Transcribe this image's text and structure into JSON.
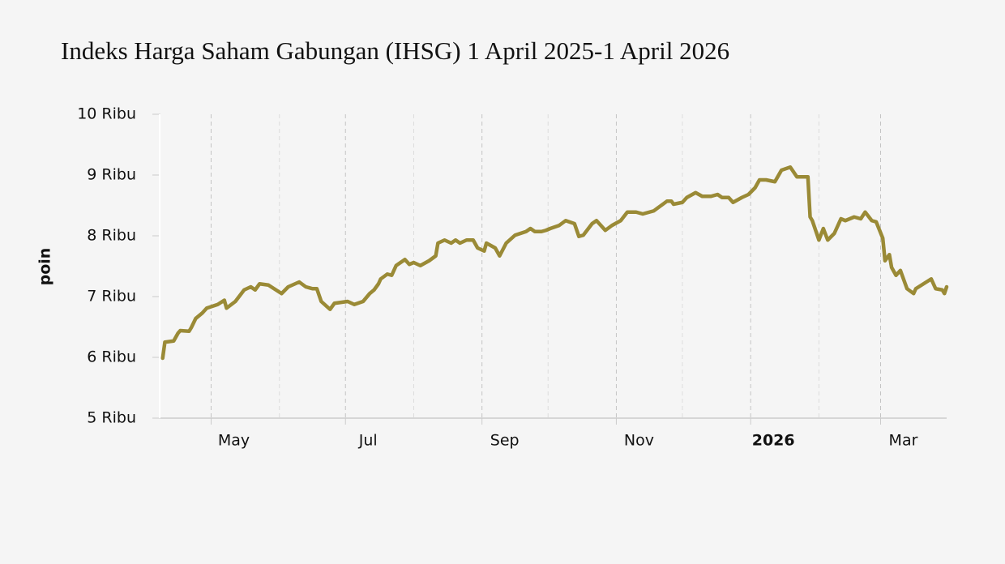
{
  "chart_data": {
    "type": "line",
    "title": "Indeks Harga Saham Gabungan (IHSG) 1 April 2025-1 April 2026",
    "y_label": "poin",
    "xlim": [
      "2025-04-08",
      "2026-03-31"
    ],
    "xticks": [
      {
        "value": "2025-05-01",
        "label": "May"
      },
      {
        "value": "2025-07-01",
        "label": "Jul"
      },
      {
        "value": "2025-09-01",
        "label": "Sep"
      },
      {
        "value": "2025-11-01",
        "label": "Nov"
      },
      {
        "value": "2026-01-01",
        "label": "2026"
      },
      {
        "value": "2026-03-01",
        "label": "Mar"
      }
    ],
    "x_minor_grid": [
      "2025-06-01",
      "2025-08-01",
      "2025-10-01",
      "2025-12-01",
      "2026-02-01"
    ],
    "ylim": [
      5000,
      10000
    ],
    "yticks": [
      {
        "value": 5000,
        "label": "5 Ribu"
      },
      {
        "value": 6000,
        "label": "6 Ribu"
      },
      {
        "value": 7000,
        "label": "7 Ribu"
      },
      {
        "value": 8000,
        "label": "8 Ribu"
      },
      {
        "value": 9000,
        "label": "9 Ribu"
      },
      {
        "value": 10000,
        "label": "10 Ribu"
      }
    ],
    "grid": true,
    "x": [
      "2025-04-09",
      "2025-04-10",
      "2025-04-14",
      "2025-04-16",
      "2025-04-17",
      "2025-04-21",
      "2025-04-22",
      "2025-04-24",
      "2025-04-27",
      "2025-04-29",
      "2025-05-04",
      "2025-05-07",
      "2025-05-08",
      "2025-05-12",
      "2025-05-16",
      "2025-05-19",
      "2025-05-21",
      "2025-05-23",
      "2025-05-27",
      "2025-06-02",
      "2025-06-05",
      "2025-06-10",
      "2025-06-13",
      "2025-06-16",
      "2025-06-18",
      "2025-06-20",
      "2025-06-24",
      "2025-06-26",
      "2025-07-02",
      "2025-07-05",
      "2025-07-09",
      "2025-07-12",
      "2025-07-14",
      "2025-07-16",
      "2025-07-17",
      "2025-07-20",
      "2025-07-22",
      "2025-07-24",
      "2025-07-28",
      "2025-07-30",
      "2025-08-01",
      "2025-08-04",
      "2025-08-08",
      "2025-08-11",
      "2025-08-12",
      "2025-08-15",
      "2025-08-18",
      "2025-08-20",
      "2025-08-22",
      "2025-08-25",
      "2025-08-28",
      "2025-08-30",
      "2025-09-02",
      "2025-09-03",
      "2025-09-07",
      "2025-09-09",
      "2025-09-12",
      "2025-09-16",
      "2025-09-21",
      "2025-09-23",
      "2025-09-25",
      "2025-09-28",
      "2025-09-30",
      "2025-10-02",
      "2025-10-06",
      "2025-10-09",
      "2025-10-13",
      "2025-10-15",
      "2025-10-17",
      "2025-10-21",
      "2025-10-23",
      "2025-10-27",
      "2025-10-30",
      "2025-11-03",
      "2025-11-06",
      "2025-11-10",
      "2025-11-13",
      "2025-11-18",
      "2025-11-21",
      "2025-11-24",
      "2025-11-26",
      "2025-11-27",
      "2025-12-01",
      "2025-12-03",
      "2025-12-07",
      "2025-12-10",
      "2025-12-14",
      "2025-12-17",
      "2025-12-19",
      "2025-12-22",
      "2025-12-24",
      "2025-12-28",
      "2025-12-31",
      "2026-01-03",
      "2026-01-05",
      "2026-01-08",
      "2026-01-12",
      "2026-01-15",
      "2026-01-19",
      "2026-01-22",
      "2026-01-27",
      "2026-01-28",
      "2026-01-29",
      "2026-02-01",
      "2026-02-03",
      "2026-02-05",
      "2026-02-08",
      "2026-02-11",
      "2026-02-13",
      "2026-02-17",
      "2026-02-20",
      "2026-02-22",
      "2026-02-25",
      "2026-02-27",
      "2026-03-02",
      "2026-03-03",
      "2026-03-05",
      "2026-03-06",
      "2026-03-08",
      "2026-03-10",
      "2026-03-13",
      "2026-03-16",
      "2026-03-17",
      "2026-03-24",
      "2026-03-26",
      "2026-03-29",
      "2026-03-30",
      "2026-03-31"
    ],
    "series": [
      {
        "name": "IHSG",
        "color": "#9a8a36",
        "values": [
          5987,
          6250,
          6270,
          6400,
          6440,
          6430,
          6490,
          6640,
          6730,
          6810,
          6870,
          6940,
          6810,
          6920,
          7110,
          7160,
          7110,
          7210,
          7190,
          7050,
          7160,
          7240,
          7160,
          7130,
          7130,
          6920,
          6790,
          6890,
          6920,
          6870,
          6920,
          7050,
          7110,
          7210,
          7290,
          7370,
          7350,
          7510,
          7610,
          7530,
          7560,
          7510,
          7590,
          7670,
          7880,
          7930,
          7880,
          7930,
          7880,
          7930,
          7930,
          7800,
          7750,
          7880,
          7800,
          7670,
          7880,
          8010,
          8070,
          8120,
          8070,
          8070,
          8090,
          8120,
          8170,
          8250,
          8200,
          7990,
          8010,
          8200,
          8250,
          8090,
          8170,
          8250,
          8390,
          8390,
          8360,
          8410,
          8490,
          8570,
          8570,
          8520,
          8550,
          8630,
          8710,
          8650,
          8650,
          8680,
          8630,
          8630,
          8550,
          8630,
          8680,
          8790,
          8920,
          8920,
          8890,
          9080,
          9130,
          8970,
          8970,
          8310,
          8250,
          7930,
          8120,
          7930,
          8040,
          8280,
          8250,
          8310,
          8280,
          8390,
          8250,
          8230,
          7960,
          7590,
          7690,
          7480,
          7350,
          7430,
          7130,
          7050,
          7130,
          7290,
          7130,
          7110,
          7050,
          7160
        ]
      }
    ]
  }
}
